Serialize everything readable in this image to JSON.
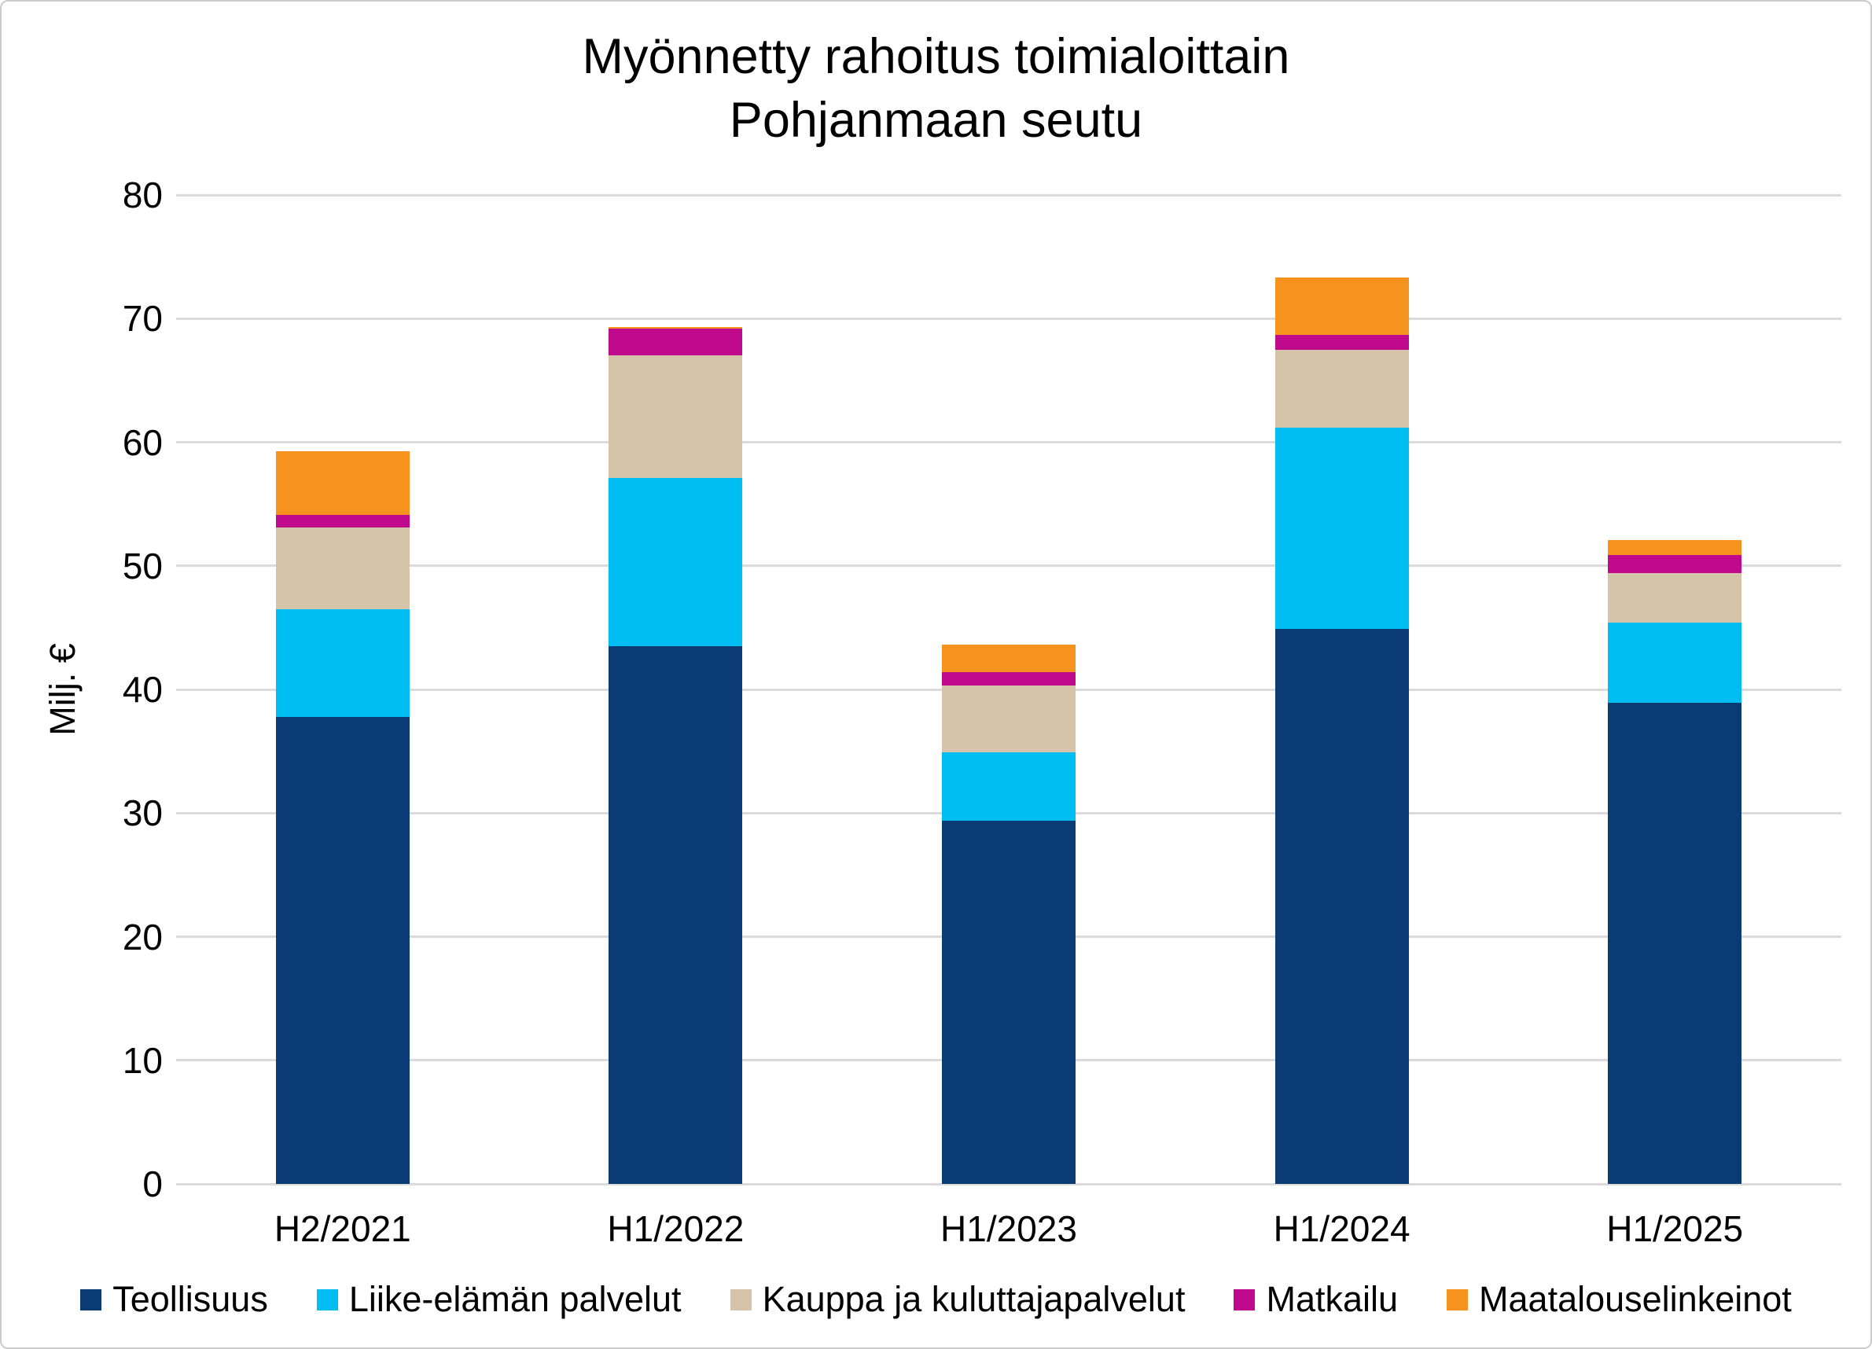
{
  "chart_data": {
    "type": "bar",
    "stacked": true,
    "title": "Myönnetty rahoitus toimialoittain",
    "subtitle": "Pohjanmaan seutu",
    "ylabel": "Milj. €",
    "ylim": [
      0,
      80
    ],
    "ytick_step": 10,
    "yticks": [
      0,
      10,
      20,
      30,
      40,
      50,
      60,
      70,
      80
    ],
    "grid": true,
    "legend_position": "bottom",
    "categories": [
      "H2/2021",
      "H1/2022",
      "H1/2023",
      "H1/2024",
      "H1/2025"
    ],
    "series": [
      {
        "name": "Teollisuus",
        "color": "#0B3B75",
        "values": [
          37.8,
          43.5,
          29.4,
          44.9,
          38.9
        ]
      },
      {
        "name": "Liike-elämän palvelut",
        "color": "#00BDF2",
        "values": [
          8.7,
          13.6,
          5.5,
          16.3,
          6.5
        ]
      },
      {
        "name": "Kauppa ja kuluttajapalvelut",
        "color": "#D5C4AA",
        "values": [
          6.6,
          9.9,
          5.4,
          6.3,
          4.0
        ]
      },
      {
        "name": "Matkailu",
        "color": "#C00A8E",
        "values": [
          1.0,
          2.2,
          1.1,
          1.2,
          1.5
        ]
      },
      {
        "name": "Maatalouselinkeinot",
        "color": "#F6921E",
        "values": [
          5.2,
          0.1,
          2.2,
          4.6,
          1.2
        ]
      }
    ],
    "totals": [
      59.3,
      69.3,
      43.6,
      73.3,
      52.1
    ],
    "colors": {
      "gridline": "#DBDBDB",
      "text": "#000000",
      "background": "#FFFFFF",
      "frame_border": "#CCCCCC"
    }
  }
}
